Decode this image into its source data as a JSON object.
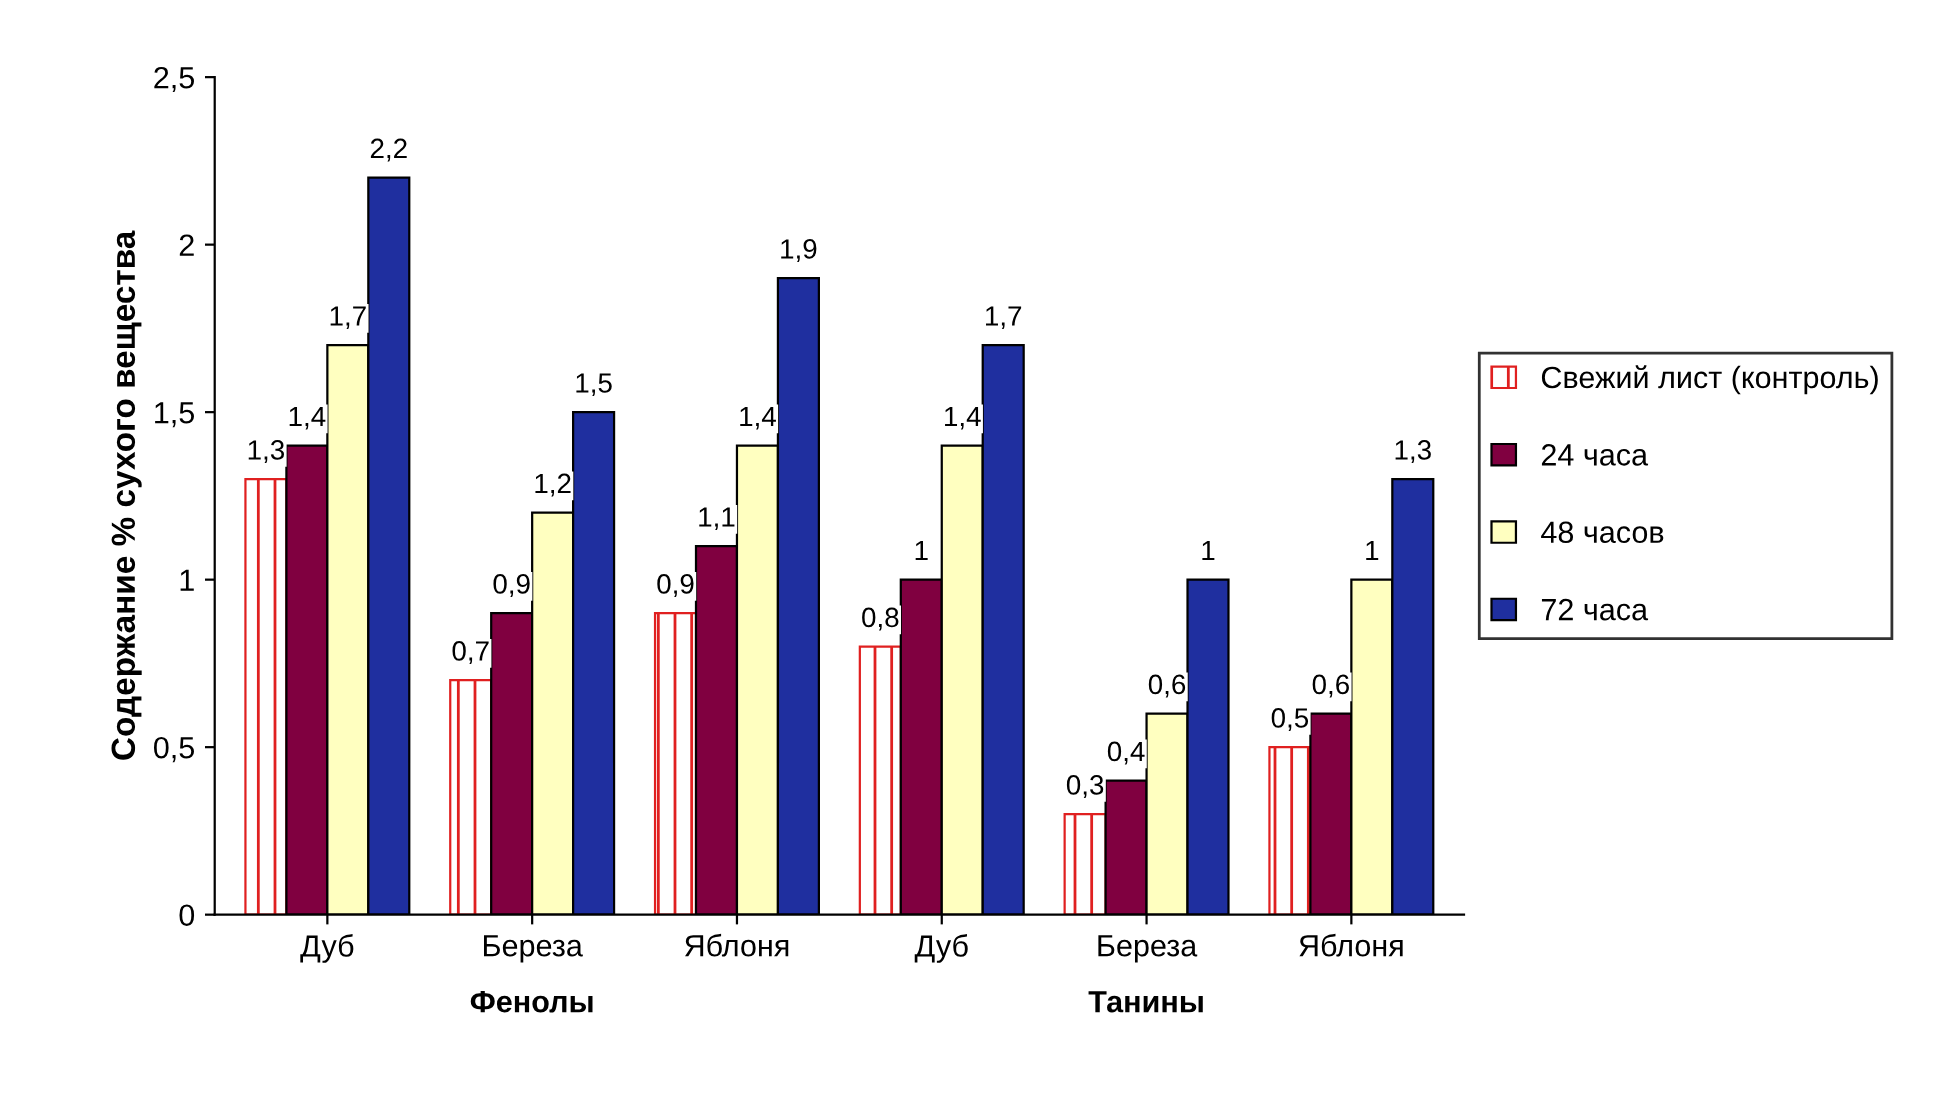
{
  "chart_data": {
    "type": "bar",
    "ylabel": "Содержание % сухого вещества",
    "categories": [
      "Дуб",
      "Береза",
      "Яблоня",
      "Дуб",
      "Береза",
      "Яблоня"
    ],
    "annotations": [
      "Фенолы",
      "Танины"
    ],
    "series": [
      {
        "name": "Свежий лист (контроль)",
        "color": "#e02020",
        "values": [
          1.3,
          0.7,
          0.9,
          0.8,
          0.3,
          0.5
        ],
        "value_labels": [
          "1,3",
          "0,7",
          "0,9",
          "0,8",
          "0,3",
          "0,5"
        ]
      },
      {
        "name": "24 часа",
        "color": "#800040",
        "values": [
          1.4,
          0.9,
          1.1,
          1,
          0.4,
          0.6
        ],
        "value_labels": [
          "1,4",
          "0,9",
          "1,1",
          "1",
          "0,4",
          "0,6"
        ]
      },
      {
        "name": "48 часов",
        "color": "#ffffc0",
        "values": [
          1.7,
          1.2,
          1.4,
          1.4,
          0.6,
          1
        ],
        "value_labels": [
          "1,7",
          "1,2",
          "1,4",
          "1,4",
          "0,6",
          "1"
        ]
      },
      {
        "name": "72 часа",
        "color": "#1f2f9f",
        "values": [
          2.2,
          1.5,
          1.9,
          1.7,
          1,
          1.3
        ],
        "value_labels": [
          "2,2",
          "1,5",
          "1,9",
          "1,7",
          "1",
          "1,3"
        ]
      }
    ],
    "ylim": [
      0,
      2.5
    ],
    "yticks": [
      0,
      {
        "value": 0.5,
        "label": "0,5"
      },
      1,
      {
        "value": 1.5,
        "label": "1,5"
      },
      2,
      {
        "value": 2.5,
        "label": "2,5"
      }
    ],
    "grid": false,
    "legend": "right"
  }
}
